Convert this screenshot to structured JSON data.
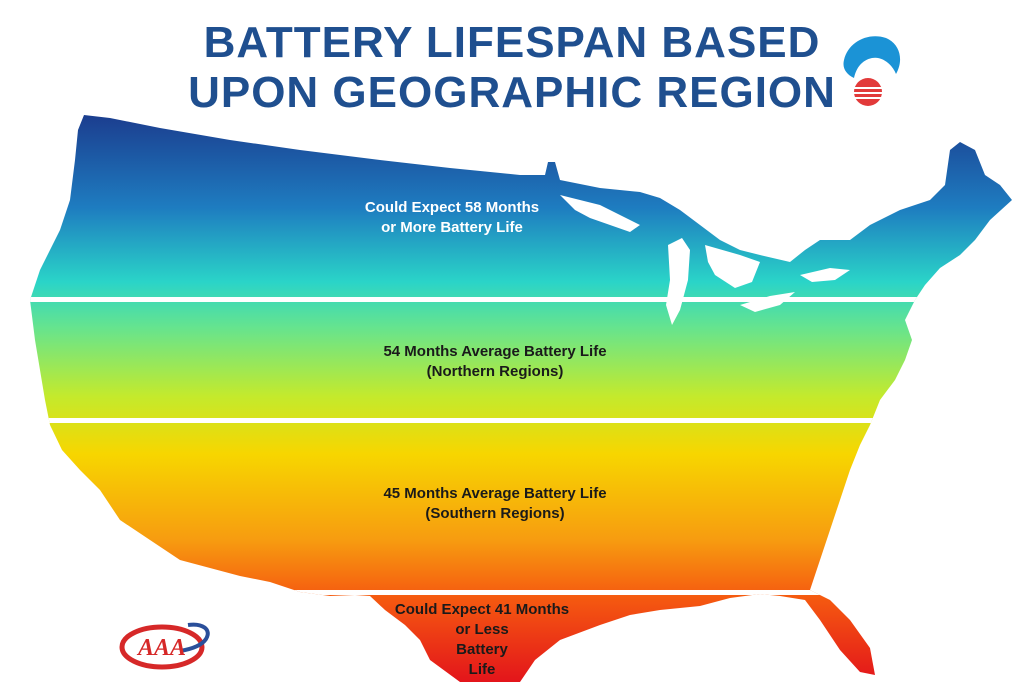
{
  "title": {
    "line1": "BATTERY LIFESPAN BASED",
    "line2": "UPON GEOGRAPHIC REGION"
  },
  "regions": [
    {
      "id": "north-most",
      "lines": [
        "Could Expect 58 Months",
        "or More Battery Life"
      ],
      "text_color": "#ffffff"
    },
    {
      "id": "northern",
      "lines": [
        "54 Months Average Battery Life",
        "(Northern Regions)"
      ],
      "text_color": "#1a1a1a"
    },
    {
      "id": "southern",
      "lines": [
        "45 Months Average Battery Life",
        "(Southern Regions)"
      ],
      "text_color": "#1a1a1a"
    },
    {
      "id": "south-most",
      "lines": [
        "Could Expect 41 Months",
        "or Less",
        "Battery",
        "Life"
      ],
      "text_color": "#1a1a1a"
    }
  ],
  "logo": {
    "text": "AAA",
    "icon": "aaa-logo-icon",
    "color": "#d62828"
  },
  "colors": {
    "title": "#1f4f8f",
    "gradient": [
      "#1b3a8c",
      "#16a3c9",
      "#5fe0a0",
      "#b6e830",
      "#f5d400",
      "#f59a10",
      "#f04a10",
      "#e0121a"
    ],
    "divider": "#ffffff"
  }
}
